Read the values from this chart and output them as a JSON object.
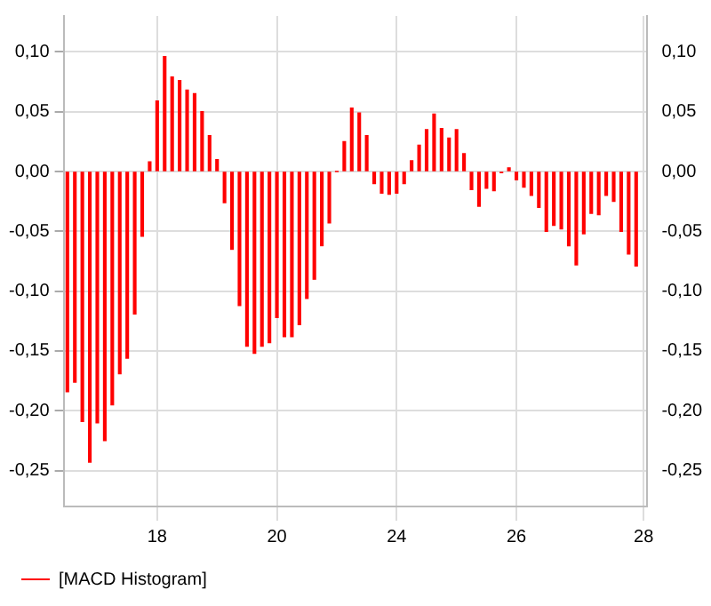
{
  "chart_data": {
    "type": "bar",
    "categories": [
      null,
      null,
      null,
      null,
      null,
      null,
      null,
      null,
      null,
      null,
      null,
      null,
      "18",
      null,
      null,
      null,
      null,
      null,
      null,
      null,
      null,
      null,
      null,
      null,
      null,
      null,
      null,
      null,
      "20",
      null,
      null,
      null,
      null,
      null,
      null,
      null,
      null,
      null,
      null,
      null,
      null,
      null,
      null,
      null,
      "24",
      null,
      null,
      null,
      null,
      null,
      null,
      null,
      null,
      null,
      null,
      null,
      null,
      null,
      null,
      null,
      "26",
      null,
      null,
      null,
      null,
      null,
      null,
      null,
      null,
      null,
      null,
      null,
      null,
      null,
      null,
      null,
      null,
      "28"
    ],
    "series": [
      {
        "name": "[MACD Histogram]",
        "color": "#ff0000",
        "values": [
          -0.184,
          -0.176,
          -0.209,
          -0.243,
          -0.21,
          -0.225,
          -0.195,
          -0.169,
          -0.156,
          -0.119,
          -0.054,
          0.008,
          0.059,
          0.096,
          0.079,
          0.076,
          0.068,
          0.065,
          0.05,
          0.03,
          0.01,
          -0.026,
          -0.065,
          -0.112,
          -0.146,
          -0.152,
          -0.146,
          -0.143,
          -0.122,
          -0.138,
          -0.138,
          -0.128,
          -0.106,
          -0.09,
          -0.062,
          -0.043,
          0,
          0.025,
          0.053,
          0.049,
          0.03,
          -0.01,
          -0.018,
          -0.019,
          -0.018,
          -0.01,
          0.009,
          0.022,
          0.035,
          0.048,
          0.036,
          0.028,
          0.035,
          0.015,
          -0.015,
          -0.029,
          -0.014,
          -0.016,
          -0.001,
          0.003,
          -0.007,
          -0.013,
          -0.02,
          -0.03,
          -0.05,
          -0.045,
          -0.048,
          -0.062,
          -0.078,
          -0.052,
          -0.035,
          -0.036,
          -0.02,
          -0.025,
          -0.05,
          -0.069,
          -0.079,
          null
        ]
      }
    ],
    "ylim": [
      -0.28,
      0.13
    ],
    "yticks": [
      {
        "value": 0.1,
        "label": "0,10"
      },
      {
        "value": 0.05,
        "label": "0,05"
      },
      {
        "value": 0,
        "label": "0,00"
      },
      {
        "value": -0.05,
        "label": "-0,05"
      },
      {
        "value": -0.1,
        "label": "-0,10"
      },
      {
        "value": -0.15,
        "label": "-0,15"
      },
      {
        "value": -0.2,
        "label": "-0,20"
      },
      {
        "value": -0.25,
        "label": "-0,25"
      }
    ],
    "y2lim": [
      -0.28,
      0.13
    ],
    "y2ticks": [
      {
        "value": 0.1,
        "label": "0,10"
      },
      {
        "value": 0.05,
        "label": "0,05"
      },
      {
        "value": 0,
        "label": "0,00"
      },
      {
        "value": -0.05,
        "label": "-0,05"
      },
      {
        "value": -0.1,
        "label": "-0,10"
      },
      {
        "value": -0.15,
        "label": "-0,15"
      },
      {
        "value": -0.2,
        "label": "-0,20"
      },
      {
        "value": -0.25,
        "label": "-0,25"
      }
    ],
    "grid": true,
    "legend": "bottom"
  }
}
